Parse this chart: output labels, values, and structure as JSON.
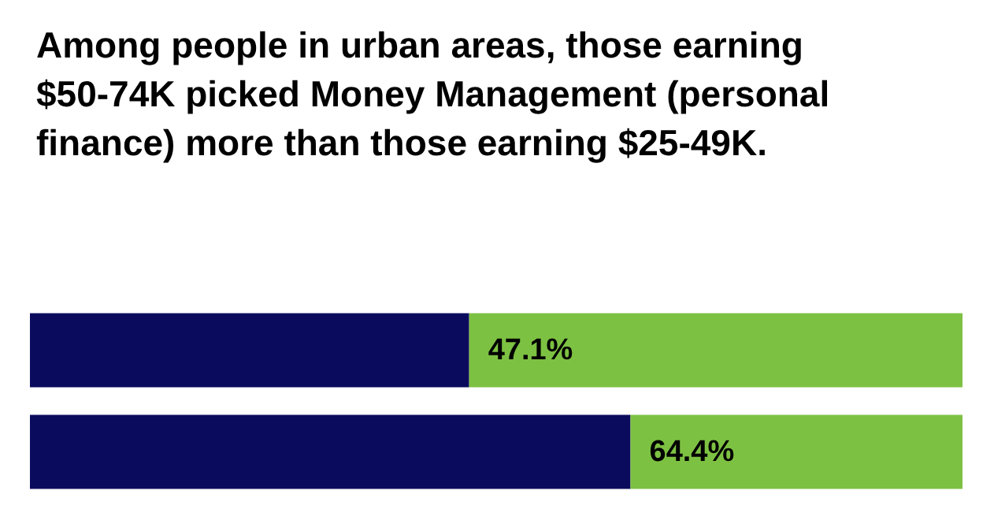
{
  "chart_data": {
    "type": "bar",
    "orientation": "horizontal",
    "stacked": true,
    "title": "Among people in urban areas, those earning $50-74K picked Money Management (personal finance) more than those earning $25-49K.",
    "categories": [
      null,
      null
    ],
    "series": [
      {
        "color": "#0b0b5e",
        "values": [
          47.1,
          64.4
        ],
        "value_labels": [
          "47.1%",
          "64.4%"
        ]
      },
      {
        "color": "#7dc142",
        "values": [
          52.9,
          35.6
        ]
      }
    ],
    "xlim": [
      0,
      100
    ],
    "tick_labels": false
  }
}
